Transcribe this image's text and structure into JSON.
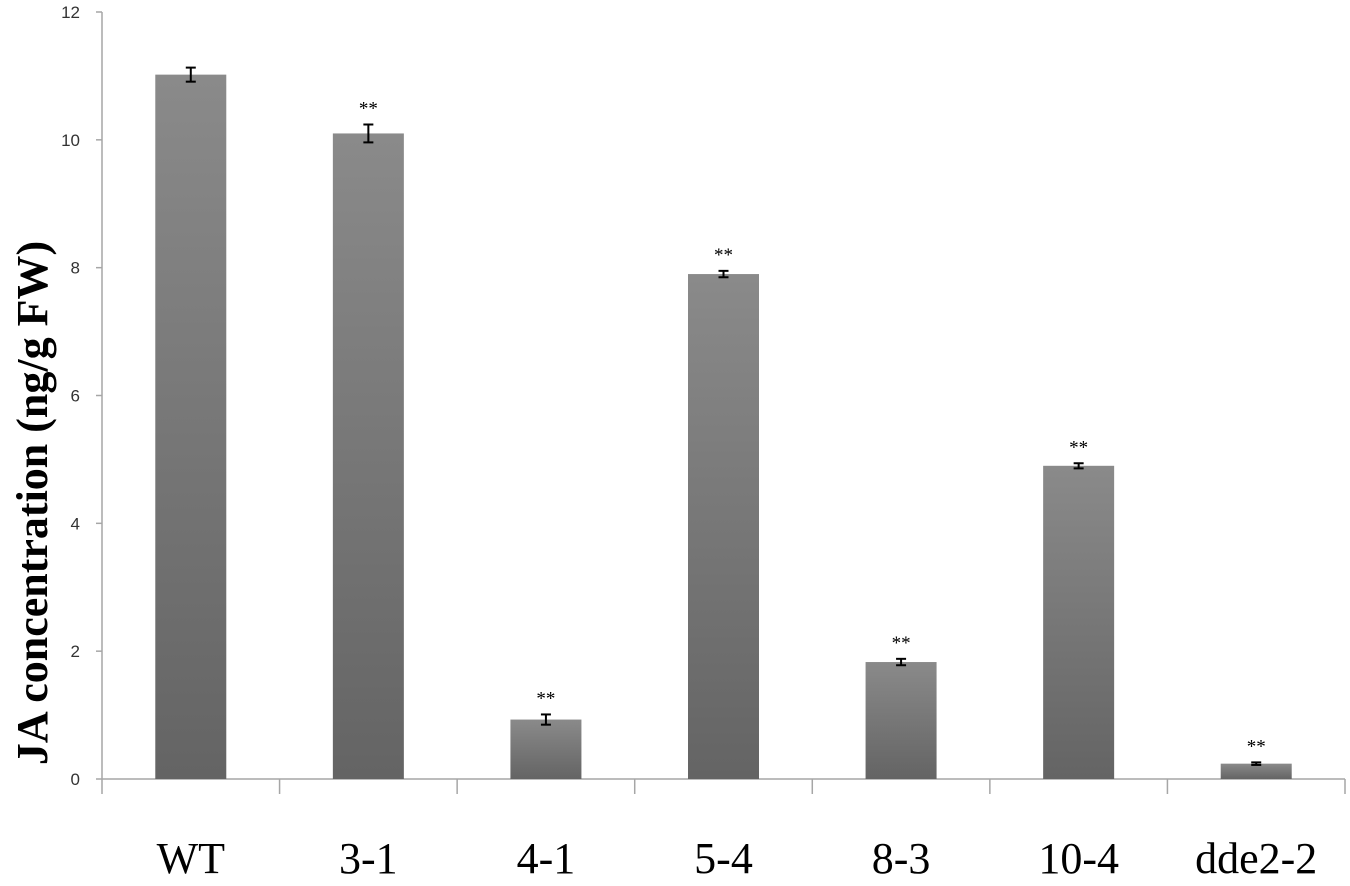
{
  "chart_data": {
    "type": "bar",
    "title": "",
    "xlabel": "",
    "ylabel": "JA concentration (ng/g FW)",
    "ylim": [
      0,
      12
    ],
    "yticks": [
      0,
      2,
      4,
      6,
      8,
      10,
      12
    ],
    "grid": false,
    "categories": [
      "WT",
      "3-1",
      "4-1",
      "5-4",
      "8-3",
      "10-4",
      "dde2-2"
    ],
    "values": [
      11.02,
      10.1,
      0.93,
      7.9,
      1.83,
      4.9,
      0.24
    ],
    "errors": [
      0.11,
      0.14,
      0.08,
      0.05,
      0.05,
      0.04,
      0.02
    ],
    "annotations": [
      "",
      "**",
      "**",
      "**",
      "**",
      "**",
      "**"
    ],
    "colors": {
      "bar_top": "#8a8a8a",
      "bar_bottom": "#646464",
      "axis": "#a6a6a6",
      "error_bar": "#000000"
    }
  }
}
